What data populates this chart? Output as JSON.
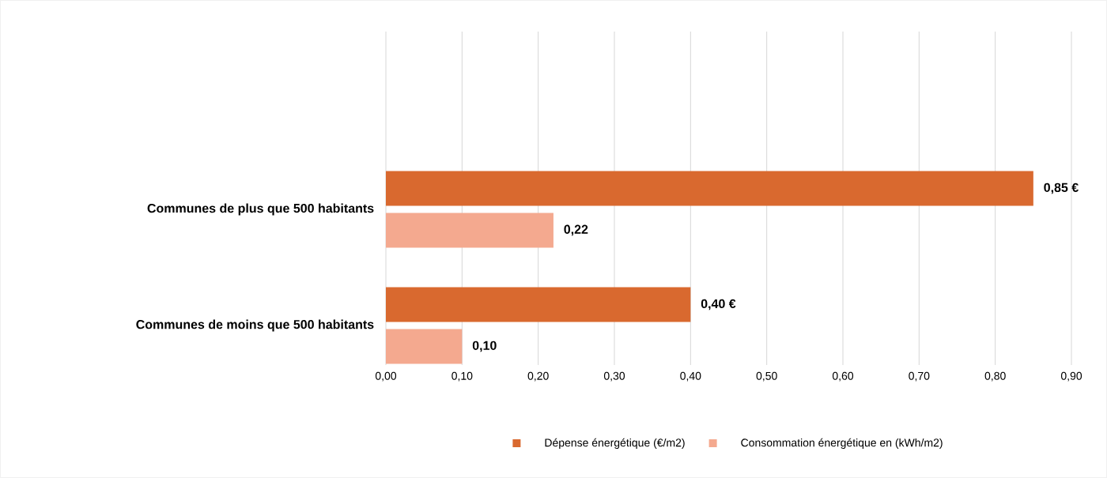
{
  "chart_data": {
    "type": "bar",
    "orientation": "horizontal",
    "categories": [
      "Communes de plus que 500 habitants",
      "Communes de moins que 500 habitants"
    ],
    "series": [
      {
        "name": "Dépense énergétique (€/m2)",
        "color": "#d9692f",
        "values": [
          0.85,
          0.4
        ],
        "value_labels": [
          "0,85 €",
          "0,40 €"
        ]
      },
      {
        "name": "Consommation énergétique en (kWh/m2)",
        "color": "#f4a98f",
        "values": [
          0.22,
          0.1
        ],
        "value_labels": [
          "0,22",
          "0,10"
        ]
      }
    ],
    "xlim": [
      0,
      0.9
    ],
    "xticks": [
      {
        "value": 0,
        "label": "0,00"
      },
      {
        "value": 0.1,
        "label": "0,10"
      },
      {
        "value": 0.2,
        "label": "0,20"
      },
      {
        "value": 0.3,
        "label": "0,30"
      },
      {
        "value": 0.4,
        "label": "0,40"
      },
      {
        "value": 0.5,
        "label": "0,50"
      },
      {
        "value": 0.6,
        "label": "0,60"
      },
      {
        "value": 0.7,
        "label": "0,70"
      },
      {
        "value": 0.8,
        "label": "0,80"
      },
      {
        "value": 0.9,
        "label": "0,90"
      }
    ],
    "grid": "x",
    "legend": "bottom"
  }
}
